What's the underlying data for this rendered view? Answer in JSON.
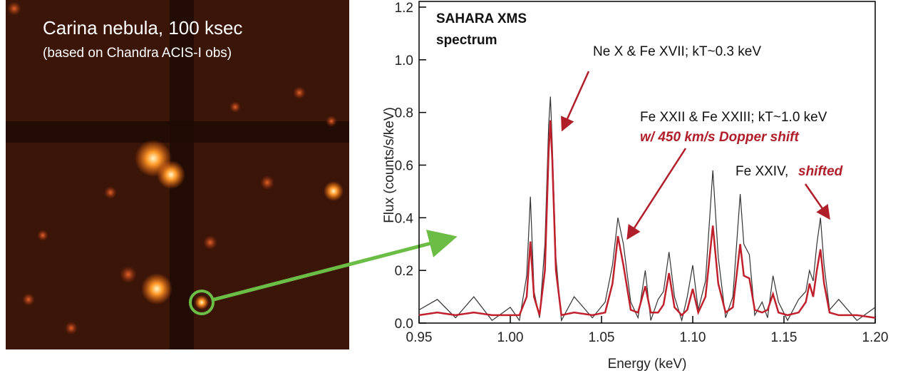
{
  "image": {
    "title": "Carina nebula, 100 ksec",
    "subtitle": "(based on Chandra ACIS-I obs)"
  },
  "chart_data": {
    "type": "line",
    "xlabel": "Energy (keV)",
    "ylabel": "Flux (counts/s/keV)",
    "annotations": [
      "SAHARA XMS",
      "spectrum",
      "Ne X & Fe XVII; kT~0.3 keV",
      "Fe XXII & Fe XXIII; kT~1.0 keV",
      "w/ 450 km/s Dopper shift",
      "Fe XXIV,",
      "shifted"
    ],
    "x": [
      0.95,
      0.96,
      0.97,
      0.98,
      0.99,
      1.0,
      1.005,
      1.009,
      1.011,
      1.013,
      1.016,
      1.019,
      1.021,
      1.022,
      1.023,
      1.025,
      1.028,
      1.035,
      1.045,
      1.052,
      1.056,
      1.059,
      1.062,
      1.066,
      1.07,
      1.074,
      1.077,
      1.081,
      1.084,
      1.087,
      1.09,
      1.094,
      1.097,
      1.1,
      1.103,
      1.107,
      1.111,
      1.114,
      1.118,
      1.122,
      1.126,
      1.128,
      1.131,
      1.134,
      1.138,
      1.141,
      1.144,
      1.147,
      1.152,
      1.158,
      1.162,
      1.164,
      1.166,
      1.168,
      1.17,
      1.172,
      1.175,
      1.18,
      1.19,
      1.2
    ],
    "series": [
      {
        "color": "#333333",
        "values": [
          0.05,
          0.09,
          0.02,
          0.1,
          0.01,
          0.06,
          0.01,
          0.18,
          0.48,
          0.12,
          0.02,
          0.3,
          0.75,
          0.86,
          0.68,
          0.25,
          0.01,
          0.1,
          0.02,
          0.08,
          0.22,
          0.4,
          0.3,
          0.08,
          0.02,
          0.2,
          0.01,
          0.09,
          0.12,
          0.27,
          0.1,
          0.01,
          0.1,
          0.22,
          0.05,
          0.16,
          0.58,
          0.25,
          0.02,
          0.1,
          0.49,
          0.3,
          0.26,
          0.03,
          0.08,
          0.02,
          0.18,
          0.08,
          0.01,
          0.09,
          0.12,
          0.2,
          0.16,
          0.3,
          0.4,
          0.22,
          0.05,
          0.09,
          0.01,
          0.06
        ]
      },
      {
        "color": "#c0202c",
        "values": [
          0.03,
          0.04,
          0.03,
          0.04,
          0.03,
          0.03,
          0.03,
          0.1,
          0.31,
          0.1,
          0.03,
          0.2,
          0.65,
          0.77,
          0.62,
          0.2,
          0.03,
          0.04,
          0.03,
          0.04,
          0.15,
          0.33,
          0.22,
          0.05,
          0.04,
          0.14,
          0.04,
          0.04,
          0.07,
          0.19,
          0.06,
          0.03,
          0.05,
          0.13,
          0.04,
          0.1,
          0.37,
          0.15,
          0.04,
          0.06,
          0.3,
          0.18,
          0.17,
          0.05,
          0.04,
          0.05,
          0.11,
          0.04,
          0.03,
          0.04,
          0.08,
          0.15,
          0.1,
          0.2,
          0.28,
          0.15,
          0.04,
          0.03,
          0.03,
          0.02
        ]
      }
    ],
    "xlim": [
      0.95,
      1.2
    ],
    "xticks": [
      0.95,
      {
        "value": 1.0,
        "label": "1.00"
      },
      1.05,
      {
        "value": 1.1,
        "label": "1.10"
      },
      1.15,
      {
        "value": 1.2,
        "label": "1.20"
      }
    ],
    "ylim": [
      0,
      1.2
    ],
    "yticks": [
      {
        "value": 0,
        "label": "0.0"
      },
      0.2,
      0.4,
      0.6,
      0.8,
      {
        "value": 1,
        "label": "1.0"
      },
      1.2
    ]
  }
}
